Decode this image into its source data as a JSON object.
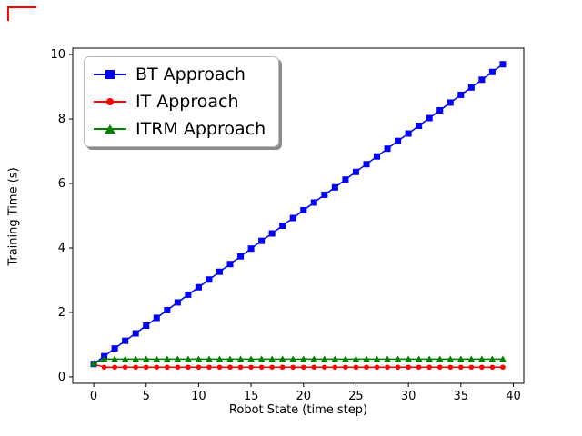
{
  "figure": {
    "background": "#ffffff",
    "crop_mark_color": "#ff0000"
  },
  "chart_data": {
    "type": "line",
    "title": "",
    "xlabel": "Robot State (time step)",
    "ylabel": "Training Time (s)",
    "xlim": [
      -2,
      41
    ],
    "ylim": [
      -0.2,
      10.2
    ],
    "xticks": [
      0,
      5,
      10,
      15,
      20,
      25,
      30,
      35,
      40
    ],
    "yticks": [
      0,
      2,
      4,
      6,
      8,
      10
    ],
    "grid": false,
    "legend_position": "upper left",
    "x": [
      0,
      1,
      2,
      3,
      4,
      5,
      6,
      7,
      8,
      9,
      10,
      11,
      12,
      13,
      14,
      15,
      16,
      17,
      18,
      19,
      20,
      21,
      22,
      23,
      24,
      25,
      26,
      27,
      28,
      29,
      30,
      31,
      32,
      33,
      34,
      35,
      36,
      37,
      38,
      39
    ],
    "series": [
      {
        "name": "BT Approach",
        "color": "#0000ff",
        "marker": "square",
        "values": [
          0.4,
          0.64,
          0.88,
          1.12,
          1.35,
          1.59,
          1.83,
          2.07,
          2.31,
          2.55,
          2.78,
          3.02,
          3.26,
          3.5,
          3.74,
          3.98,
          4.22,
          4.45,
          4.69,
          4.93,
          5.17,
          5.41,
          5.65,
          5.88,
          6.12,
          6.36,
          6.6,
          6.84,
          7.08,
          7.32,
          7.55,
          7.79,
          8.03,
          8.27,
          8.51,
          8.75,
          8.98,
          9.22,
          9.46,
          9.7
        ]
      },
      {
        "name": "IT Approach",
        "color": "#ff0000",
        "marker": "circle",
        "values": [
          0.4,
          0.3,
          0.3,
          0.3,
          0.3,
          0.3,
          0.3,
          0.3,
          0.3,
          0.3,
          0.3,
          0.3,
          0.3,
          0.3,
          0.3,
          0.3,
          0.3,
          0.3,
          0.3,
          0.3,
          0.3,
          0.3,
          0.3,
          0.3,
          0.3,
          0.3,
          0.3,
          0.3,
          0.3,
          0.3,
          0.3,
          0.3,
          0.3,
          0.3,
          0.3,
          0.3,
          0.3,
          0.3,
          0.3,
          0.3
        ]
      },
      {
        "name": "ITRM Approach",
        "color": "#008000",
        "marker": "triangle",
        "values": [
          0.42,
          0.55,
          0.55,
          0.55,
          0.55,
          0.55,
          0.55,
          0.55,
          0.55,
          0.55,
          0.55,
          0.55,
          0.55,
          0.55,
          0.55,
          0.55,
          0.55,
          0.55,
          0.55,
          0.55,
          0.55,
          0.55,
          0.55,
          0.55,
          0.55,
          0.55,
          0.55,
          0.55,
          0.55,
          0.55,
          0.55,
          0.55,
          0.55,
          0.55,
          0.55,
          0.55,
          0.55,
          0.55,
          0.55,
          0.55
        ]
      }
    ]
  }
}
